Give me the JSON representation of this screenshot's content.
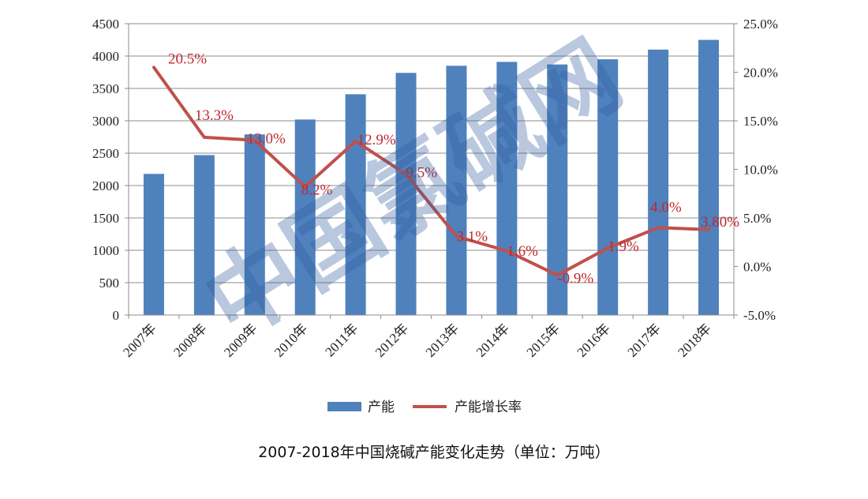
{
  "caption": "2007-2018年中国烧碱产能变化走势（单位：万吨）",
  "watermark": "中国氯碱网",
  "chart_data": {
    "type": "bar+line",
    "title": "2007-2018年中国烧碱产能变化走势（单位：万吨）",
    "categories": [
      "2007年",
      "2008年",
      "2009年",
      "2010年",
      "2011年",
      "2012年",
      "2013年",
      "2014年",
      "2015年",
      "2016年",
      "2017年",
      "2018年"
    ],
    "series": [
      {
        "name": "产能",
        "type": "bar",
        "axis": "left",
        "color": "#4f81bd",
        "values": [
          2180,
          2470,
          2790,
          3020,
          3410,
          3740,
          3850,
          3910,
          3870,
          3950,
          4100,
          4250
        ]
      },
      {
        "name": "产能增长率",
        "type": "line",
        "axis": "right",
        "color": "#c0504d",
        "values": [
          20.5,
          13.3,
          13.0,
          8.2,
          12.9,
          9.5,
          3.1,
          1.6,
          -0.9,
          1.9,
          4.0,
          3.8
        ],
        "labels": [
          "20.5%",
          "13.3%",
          "13.0%",
          "8.2%",
          "12.9%",
          "9.5%",
          "3.1%",
          "1.6%",
          "-0.9%",
          "1.9%",
          "4.0%",
          "3.80%"
        ]
      }
    ],
    "y_left": {
      "min": 0,
      "max": 4500,
      "ticks": [
        "0",
        "500",
        "1000",
        "1500",
        "2000",
        "2500",
        "3000",
        "3500",
        "4000",
        "4500"
      ]
    },
    "y_right": {
      "min": -5,
      "max": 25,
      "ticks": [
        "-5.0%",
        "0.0%",
        "5.0%",
        "10.0%",
        "15.0%",
        "20.0%",
        "25.0%"
      ]
    },
    "grid": true,
    "legend": "bottom",
    "label_color": "#c0282d"
  }
}
